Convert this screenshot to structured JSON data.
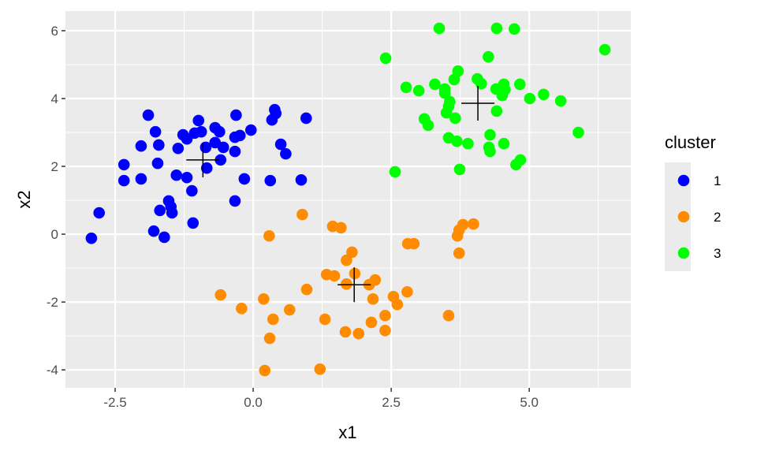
{
  "chart_data": {
    "type": "scatter",
    "xlabel": "x1",
    "ylabel": "x2",
    "xlim": [
      -3.4,
      6.84
    ],
    "ylim": [
      -4.53,
      6.58
    ],
    "x_ticks": [
      -2.5,
      0.0,
      2.5,
      5.0
    ],
    "x_tick_labels": [
      "-2.5",
      "0.0",
      "2.5",
      "5.0"
    ],
    "y_ticks": [
      -4,
      -2,
      0,
      2,
      4,
      6
    ],
    "y_tick_labels": [
      "-4",
      "-2",
      "0",
      "2",
      "4",
      "6"
    ],
    "grid": true,
    "legend": {
      "title": "cluster",
      "position": "right"
    },
    "series": [
      {
        "name": "1",
        "color": "#0000FF",
        "centroid": [
          -0.91,
          2.19
        ],
        "points": [
          [
            -1.9,
            3.51
          ],
          [
            -1.77,
            3.02
          ],
          [
            -2.03,
            2.6
          ],
          [
            -1.71,
            2.63
          ],
          [
            -1.73,
            2.09
          ],
          [
            -2.34,
            2.05
          ],
          [
            -2.34,
            1.58
          ],
          [
            -2.03,
            1.63
          ],
          [
            -1.36,
            2.53
          ],
          [
            -1.27,
            2.93
          ],
          [
            -1.2,
            2.81
          ],
          [
            -1.06,
            2.98
          ],
          [
            -0.94,
            3.02
          ],
          [
            -0.99,
            3.35
          ],
          [
            -0.86,
            2.56
          ],
          [
            -0.69,
            3.14
          ],
          [
            -0.61,
            3.02
          ],
          [
            -0.69,
            2.7
          ],
          [
            -0.54,
            2.56
          ],
          [
            -0.59,
            2.19
          ],
          [
            -0.84,
            1.95
          ],
          [
            -0.31,
            3.51
          ],
          [
            -0.33,
            2.86
          ],
          [
            -0.24,
            2.91
          ],
          [
            -0.04,
            3.07
          ],
          [
            -0.33,
            2.44
          ],
          [
            -0.16,
            1.63
          ],
          [
            -1.39,
            1.74
          ],
          [
            -1.2,
            1.67
          ],
          [
            -1.11,
            1.28
          ],
          [
            -0.33,
            0.98
          ],
          [
            -1.53,
            0.98
          ],
          [
            -1.49,
            0.81
          ],
          [
            -1.69,
            0.7
          ],
          [
            -1.47,
            0.63
          ],
          [
            -1.09,
            0.33
          ],
          [
            -2.79,
            0.63
          ],
          [
            -2.93,
            -0.12
          ],
          [
            -1.8,
            0.09
          ],
          [
            -1.61,
            -0.09
          ],
          [
            0.39,
            3.67
          ],
          [
            0.41,
            3.56
          ],
          [
            0.34,
            3.37
          ],
          [
            0.96,
            3.42
          ],
          [
            0.5,
            2.65
          ],
          [
            0.59,
            2.37
          ],
          [
            0.31,
            1.58
          ],
          [
            0.87,
            1.6
          ]
        ]
      },
      {
        "name": "2",
        "color": "#FF8C00",
        "centroid": [
          1.83,
          -1.49
        ],
        "points": [
          [
            0.89,
            0.58
          ],
          [
            0.29,
            -0.05
          ],
          [
            1.44,
            0.23
          ],
          [
            1.59,
            0.19
          ],
          [
            1.79,
            -0.53
          ],
          [
            1.69,
            -0.77
          ],
          [
            1.33,
            -1.19
          ],
          [
            1.47,
            -1.23
          ],
          [
            1.84,
            -1.16
          ],
          [
            1.69,
            -1.47
          ],
          [
            2.1,
            -1.49
          ],
          [
            2.21,
            -1.35
          ],
          [
            2.17,
            -1.91
          ],
          [
            2.54,
            -1.84
          ],
          [
            2.61,
            -2.07
          ],
          [
            2.79,
            -1.7
          ],
          [
            2.39,
            -2.4
          ],
          [
            2.14,
            -2.6
          ],
          [
            2.39,
            -2.84
          ],
          [
            1.67,
            -2.88
          ],
          [
            1.91,
            -2.93
          ],
          [
            1.3,
            -2.51
          ],
          [
            0.97,
            -1.63
          ],
          [
            0.66,
            -2.23
          ],
          [
            0.36,
            -2.51
          ],
          [
            0.19,
            -1.91
          ],
          [
            -0.21,
            -2.19
          ],
          [
            -0.59,
            -1.79
          ],
          [
            0.3,
            -3.07
          ],
          [
            0.21,
            -4.02
          ],
          [
            1.21,
            -3.98
          ],
          [
            2.8,
            -0.28
          ],
          [
            2.91,
            -0.28
          ],
          [
            3.7,
            -0.05
          ],
          [
            3.73,
            0.12
          ],
          [
            3.8,
            0.28
          ],
          [
            3.99,
            0.3
          ],
          [
            3.73,
            -0.56
          ],
          [
            3.54,
            -2.4
          ]
        ]
      },
      {
        "name": "3",
        "color": "#00FF00",
        "centroid": [
          4.07,
          3.86
        ],
        "points": [
          [
            3.37,
            6.07
          ],
          [
            4.41,
            6.07
          ],
          [
            4.73,
            6.05
          ],
          [
            6.37,
            5.44
          ],
          [
            2.4,
            5.19
          ],
          [
            4.26,
            5.23
          ],
          [
            3.71,
            4.81
          ],
          [
            3.64,
            4.56
          ],
          [
            4.06,
            4.58
          ],
          [
            4.13,
            4.44
          ],
          [
            2.77,
            4.33
          ],
          [
            3.0,
            4.23
          ],
          [
            3.29,
            4.42
          ],
          [
            3.47,
            4.28
          ],
          [
            3.47,
            4.16
          ],
          [
            4.4,
            4.28
          ],
          [
            4.54,
            4.42
          ],
          [
            4.56,
            4.26
          ],
          [
            4.51,
            4.09
          ],
          [
            4.83,
            4.42
          ],
          [
            5.01,
            4.0
          ],
          [
            5.26,
            4.12
          ],
          [
            5.57,
            3.93
          ],
          [
            3.56,
            3.91
          ],
          [
            3.54,
            3.77
          ],
          [
            3.5,
            3.58
          ],
          [
            3.66,
            3.42
          ],
          [
            4.41,
            3.63
          ],
          [
            3.1,
            3.4
          ],
          [
            3.17,
            3.21
          ],
          [
            5.89,
            3.0
          ],
          [
            4.29,
            2.93
          ],
          [
            3.54,
            2.84
          ],
          [
            3.69,
            2.74
          ],
          [
            3.89,
            2.67
          ],
          [
            4.27,
            2.56
          ],
          [
            4.29,
            2.44
          ],
          [
            4.54,
            2.67
          ],
          [
            4.84,
            2.19
          ],
          [
            4.76,
            2.05
          ],
          [
            2.57,
            1.84
          ],
          [
            3.74,
            1.91
          ]
        ]
      }
    ]
  }
}
